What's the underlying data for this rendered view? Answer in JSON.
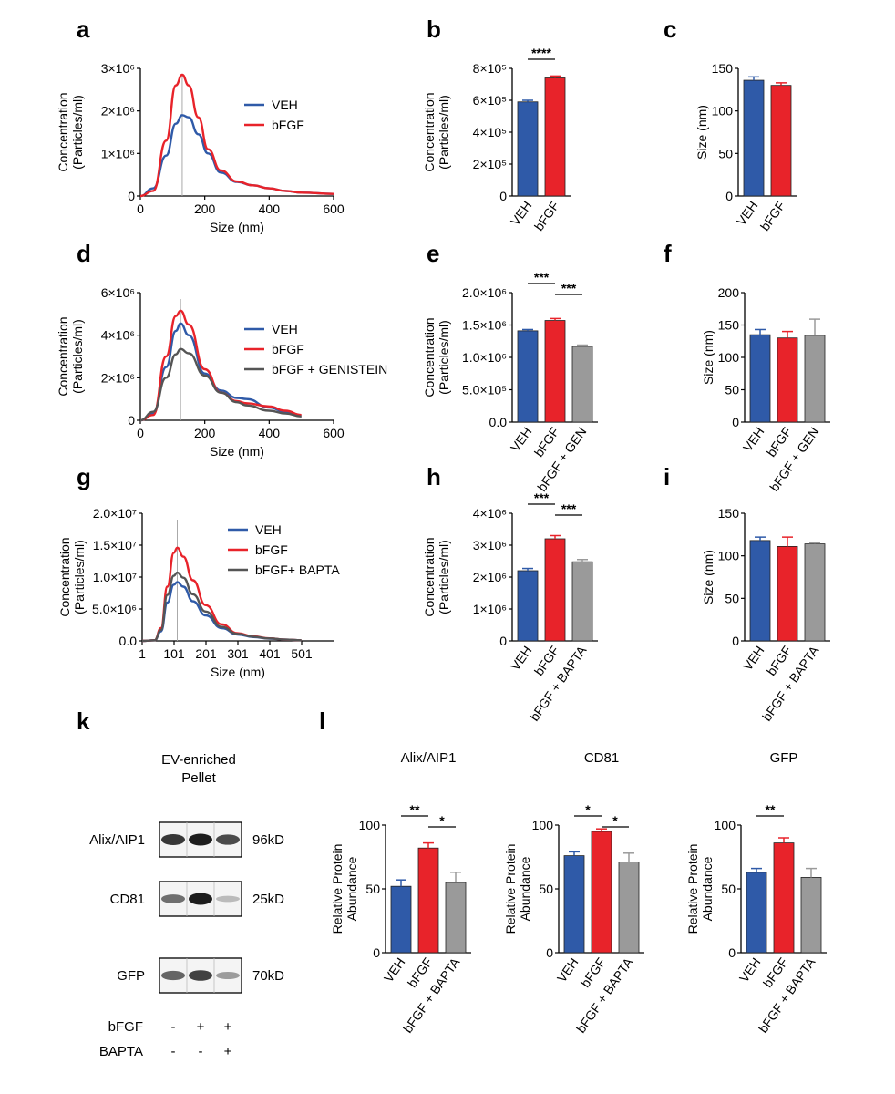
{
  "colors": {
    "veh": "#2f5aa8",
    "bfgf": "#e8232a",
    "third": "#9a9a9a",
    "line_third": "#555555"
  },
  "panel_letters": {
    "a": "a",
    "b": "b",
    "c": "c",
    "d": "d",
    "e": "e",
    "f": "f",
    "g": "g",
    "h": "h",
    "i": "i",
    "k": "k",
    "l": "l"
  },
  "chart_data": [
    {
      "id": "a",
      "type": "line",
      "xlabel": "Size (nm)",
      "ylabel": "Concentration (Particles/ml)",
      "xlim": [
        0,
        600
      ],
      "ylim": [
        0,
        3000000
      ],
      "xticks": [
        0,
        200,
        400,
        600
      ],
      "xtick_labels": [
        "0",
        "200",
        "400",
        "600"
      ],
      "yticks": [
        0,
        1000000,
        2000000,
        3000000
      ],
      "ytick_labels": [
        "0",
        "1×10⁶",
        "2×10⁶",
        "3×10⁶"
      ],
      "vline": 130,
      "series": [
        {
          "name": "VEH",
          "color": "#2f5aa8",
          "x": [
            0,
            40,
            80,
            110,
            130,
            150,
            180,
            210,
            250,
            300,
            350,
            400,
            450,
            500,
            600
          ],
          "y": [
            0,
            180000,
            950000,
            1700000,
            1900000,
            1850000,
            1450000,
            1000000,
            550000,
            330000,
            250000,
            180000,
            120000,
            80000,
            50000
          ]
        },
        {
          "name": "bFGF",
          "color": "#e8232a",
          "x": [
            0,
            40,
            80,
            110,
            130,
            150,
            180,
            210,
            250,
            300,
            350,
            400,
            450,
            500,
            600
          ],
          "y": [
            0,
            120000,
            1300000,
            2600000,
            2850000,
            2600000,
            1850000,
            1100000,
            600000,
            340000,
            250000,
            180000,
            120000,
            80000,
            50000
          ]
        }
      ]
    },
    {
      "id": "b",
      "type": "bar",
      "ylabel": "Concentration (Particles/ml)",
      "categories": [
        "VEH",
        "bFGF"
      ],
      "values": [
        590000,
        740000
      ],
      "errors": [
        10000,
        12000
      ],
      "ylim": [
        0,
        800000
      ],
      "yticks": [
        0,
        200000,
        400000,
        600000,
        800000
      ],
      "ytick_labels": [
        "0",
        "2×10⁵",
        "4×10⁵",
        "6×10⁵",
        "8×10⁵"
      ],
      "significance": [
        {
          "from": 0,
          "to": 1,
          "label": "****"
        }
      ]
    },
    {
      "id": "c",
      "type": "bar",
      "ylabel": "Size (nm)",
      "categories": [
        "VEH",
        "bFGF"
      ],
      "values": [
        136,
        130
      ],
      "errors": [
        4,
        3
      ],
      "ylim": [
        0,
        150
      ],
      "yticks": [
        0,
        50,
        100,
        150
      ],
      "ytick_labels": [
        "0",
        "50",
        "100",
        "150"
      ],
      "significance": []
    },
    {
      "id": "d",
      "type": "line",
      "xlabel": "Size (nm)",
      "ylabel": "Concentration (Particles/ml)",
      "xlim": [
        0,
        600
      ],
      "ylim": [
        0,
        6000000
      ],
      "xticks": [
        0,
        200,
        400,
        600
      ],
      "xtick_labels": [
        "0",
        "200",
        "400",
        "600"
      ],
      "yticks": [
        0,
        2000000,
        4000000,
        6000000
      ],
      "ytick_labels": [
        "0",
        "2×10⁶",
        "4×10⁶",
        "6×10⁶"
      ],
      "vline": 125,
      "series": [
        {
          "name": "VEH",
          "color": "#2f5aa8",
          "x": [
            0,
            40,
            80,
            110,
            125,
            150,
            200,
            250,
            300,
            330,
            400,
            450,
            500
          ],
          "y": [
            0,
            300000,
            2500000,
            4200000,
            4550000,
            4000000,
            2200000,
            1400000,
            1050000,
            1000000,
            600000,
            400000,
            200000
          ]
        },
        {
          "name": "bFGF",
          "color": "#e8232a",
          "x": [
            0,
            40,
            80,
            110,
            125,
            150,
            200,
            250,
            300,
            330,
            400,
            450,
            500
          ],
          "y": [
            0,
            250000,
            3000000,
            4900000,
            5150000,
            4500000,
            2400000,
            1300000,
            900000,
            800000,
            650000,
            450000,
            250000
          ]
        },
        {
          "name": "bFGF + GENISTEIN",
          "color": "#555555",
          "x": [
            0,
            40,
            80,
            110,
            125,
            150,
            200,
            250,
            300,
            330,
            400,
            450,
            500
          ],
          "y": [
            0,
            400000,
            2000000,
            3100000,
            3350000,
            3150000,
            2100000,
            1300000,
            850000,
            700000,
            450000,
            320000,
            180000
          ]
        }
      ]
    },
    {
      "id": "e",
      "type": "bar",
      "ylabel": "Concentration (Particles/ml)",
      "categories": [
        "VEH",
        "bFGF",
        "bFGF + GEN"
      ],
      "values": [
        1410000,
        1570000,
        1170000
      ],
      "errors": [
        20000,
        30000,
        20000
      ],
      "ylim": [
        0,
        2000000
      ],
      "yticks": [
        0,
        500000,
        1000000,
        1500000,
        2000000
      ],
      "ytick_labels": [
        "0.0",
        "5.0×10⁵",
        "1.0×10⁶",
        "1.5×10⁶",
        "2.0×10⁶"
      ],
      "significance": [
        {
          "from": 0,
          "to": 1,
          "label": "***"
        },
        {
          "from": 1,
          "to": 2,
          "label": "***"
        }
      ]
    },
    {
      "id": "f",
      "type": "bar",
      "ylabel": "Size (nm)",
      "categories": [
        "VEH",
        "bFGF",
        "bFGF + GEN"
      ],
      "values": [
        135,
        130,
        134
      ],
      "errors": [
        8,
        10,
        25
      ],
      "ylim": [
        0,
        200
      ],
      "yticks": [
        0,
        50,
        100,
        150,
        200
      ],
      "ytick_labels": [
        "0",
        "50",
        "100",
        "150",
        "200"
      ],
      "significance": []
    },
    {
      "id": "g",
      "type": "line",
      "xlabel": "Size (nm)",
      "ylabel": "Concentration (Particles/ml)",
      "xlim": [
        1,
        601
      ],
      "ylim": [
        0,
        20000000
      ],
      "xticks": [
        1,
        101,
        201,
        301,
        401,
        501
      ],
      "xtick_labels": [
        "1",
        "101",
        "201",
        "301",
        "401",
        "501"
      ],
      "yticks": [
        0,
        5000000,
        10000000,
        15000000,
        20000000
      ],
      "ytick_labels": [
        "0.0",
        "5.0×10⁶",
        "1.0×10⁷",
        "1.5×10⁷",
        "2.0×10⁷"
      ],
      "vline": 111,
      "series": [
        {
          "name": "VEH",
          "color": "#2f5aa8",
          "x": [
            1,
            40,
            60,
            80,
            100,
            111,
            130,
            160,
            200,
            250,
            300,
            350,
            400,
            450,
            500
          ],
          "y": [
            0,
            100000,
            1500000,
            6000000,
            8800000,
            9200000,
            8500000,
            6200000,
            4000000,
            2000000,
            1000000,
            600000,
            350000,
            200000,
            100000
          ]
        },
        {
          "name": "bFGF",
          "color": "#e8232a",
          "x": [
            1,
            40,
            60,
            80,
            100,
            111,
            130,
            160,
            200,
            250,
            300,
            350,
            400,
            450,
            500
          ],
          "y": [
            0,
            100000,
            2000000,
            8500000,
            13800000,
            14600000,
            13200000,
            9500000,
            5600000,
            2600000,
            1200000,
            700000,
            400000,
            200000,
            100000
          ]
        },
        {
          "name": "bFGF+ BAPTA",
          "color": "#555555",
          "x": [
            1,
            40,
            60,
            80,
            100,
            111,
            130,
            160,
            200,
            250,
            300,
            350,
            400,
            450,
            500
          ],
          "y": [
            0,
            100000,
            1700000,
            7200000,
            10200000,
            10700000,
            9900000,
            7300000,
            4600000,
            2200000,
            1100000,
            650000,
            380000,
            200000,
            100000
          ]
        }
      ]
    },
    {
      "id": "h",
      "type": "bar",
      "ylabel": "Concentration (Particles/ml)",
      "categories": [
        "VEH",
        "bFGF",
        "bFGF + BAPTA"
      ],
      "values": [
        2200000,
        3200000,
        2480000
      ],
      "errors": [
        70000,
        100000,
        70000
      ],
      "ylim": [
        0,
        4000000
      ],
      "yticks": [
        0,
        1000000,
        2000000,
        3000000,
        4000000
      ],
      "ytick_labels": [
        "0",
        "1×10⁶",
        "2×10⁶",
        "3×10⁶",
        "4×10⁶"
      ],
      "significance": [
        {
          "from": 0,
          "to": 1,
          "label": "***"
        },
        {
          "from": 1,
          "to": 2,
          "label": "***"
        }
      ]
    },
    {
      "id": "i",
      "type": "bar",
      "ylabel": "Size (nm)",
      "categories": [
        "VEH",
        "bFGF",
        "bFGF + BAPTA"
      ],
      "values": [
        118,
        111,
        114
      ],
      "errors": [
        4,
        11,
        1
      ],
      "ylim": [
        0,
        150
      ],
      "yticks": [
        0,
        50,
        100,
        150
      ],
      "ytick_labels": [
        "0",
        "50",
        "100",
        "150"
      ],
      "significance": []
    },
    {
      "id": "l1",
      "type": "bar",
      "title": "Alix/AIP1",
      "ylabel": "Relative Protein Abundance",
      "categories": [
        "VEH",
        "bFGF",
        "bFGF + BAPTA"
      ],
      "values": [
        52,
        82,
        55
      ],
      "errors": [
        5,
        4,
        8
      ],
      "ylim": [
        0,
        100
      ],
      "yticks": [
        0,
        50,
        100
      ],
      "ytick_labels": [
        "0",
        "50",
        "100"
      ],
      "significance": [
        {
          "from": 0,
          "to": 1,
          "label": "**"
        },
        {
          "from": 1,
          "to": 2,
          "label": "*"
        }
      ]
    },
    {
      "id": "l2",
      "type": "bar",
      "title": "CD81",
      "ylabel": "Relative Protein Abundance",
      "categories": [
        "VEH",
        "bFGF",
        "bFGF + BAPTA"
      ],
      "values": [
        76,
        95,
        71
      ],
      "errors": [
        3,
        2,
        7
      ],
      "ylim": [
        0,
        100
      ],
      "yticks": [
        0,
        50,
        100
      ],
      "ytick_labels": [
        "0",
        "50",
        "100"
      ],
      "significance": [
        {
          "from": 0,
          "to": 1,
          "label": "*"
        },
        {
          "from": 1,
          "to": 2,
          "label": "*"
        }
      ]
    },
    {
      "id": "l3",
      "type": "bar",
      "title": "GFP",
      "ylabel": "Relative Protein Abundance",
      "categories": [
        "VEH",
        "bFGF",
        "bFGF + BAPTA"
      ],
      "values": [
        63,
        86,
        59
      ],
      "errors": [
        3,
        4,
        7
      ],
      "ylim": [
        0,
        100
      ],
      "yticks": [
        0,
        50,
        100
      ],
      "ytick_labels": [
        "0",
        "50",
        "100"
      ],
      "significance": [
        {
          "from": 0,
          "to": 1,
          "label": "**"
        }
      ]
    }
  ],
  "western_blot": {
    "title_line1": "EV-enriched",
    "title_line2": "Pellet",
    "bands": [
      {
        "protein": "Alix/AIP1",
        "size": "96kD",
        "intensity": [
          0.85,
          1.0,
          0.75
        ]
      },
      {
        "protein": "CD81",
        "size": "25kD",
        "intensity": [
          0.55,
          1.0,
          0.12
        ]
      },
      {
        "protein": "GFP",
        "size": "70kD",
        "intensity": [
          0.6,
          0.8,
          0.3
        ]
      }
    ],
    "treatments": [
      {
        "name": "bFGF",
        "marks": [
          "-",
          "+",
          "+"
        ]
      },
      {
        "name": "BAPTA",
        "marks": [
          "-",
          "-",
          "+"
        ]
      }
    ]
  }
}
